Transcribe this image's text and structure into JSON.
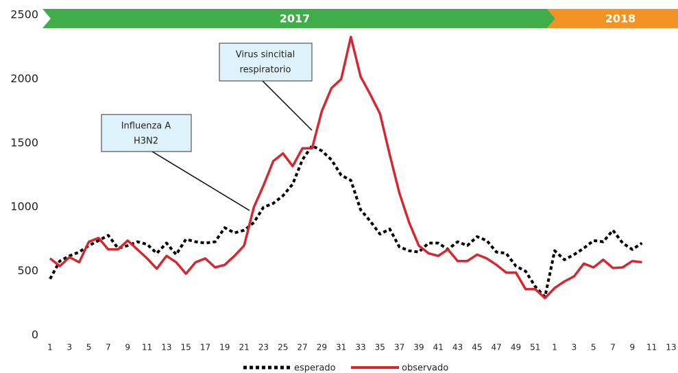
{
  "chart_data": {
    "type": "line",
    "banner": [
      "2017",
      "2018"
    ],
    "annotations": [
      [
        "Influenza A",
        "H3N2"
      ],
      [
        "Virus sincitial",
        "respiratorio"
      ]
    ],
    "categories": [
      "1",
      null,
      "3",
      null,
      "5",
      null,
      "7",
      null,
      "9",
      null,
      "11",
      null,
      "13",
      null,
      "15",
      null,
      "17",
      null,
      "19",
      null,
      "21",
      null,
      "23",
      null,
      "25",
      null,
      "27",
      null,
      "29",
      null,
      "31",
      null,
      "33",
      null,
      "35",
      null,
      "37",
      null,
      "39",
      null,
      "41",
      null,
      "43",
      null,
      "45",
      null,
      "47",
      null,
      "49",
      null,
      "51",
      null,
      "1",
      null,
      "3",
      null,
      "5",
      null,
      "7",
      null,
      "9",
      null,
      "11",
      null,
      "13"
    ],
    "series": [
      {
        "name": "esperado",
        "color": "#000000",
        "dashed": true,
        "values": [
          440,
          580,
          620,
          650,
          700,
          740,
          780,
          680,
          700,
          730,
          710,
          640,
          720,
          630,
          750,
          730,
          720,
          730,
          840,
          800,
          820,
          880,
          1000,
          1030,
          1090,
          1180,
          1370,
          1480,
          1440,
          1370,
          1250,
          1210,
          980,
          890,
          790,
          830,
          690,
          660,
          650,
          720,
          720,
          670,
          730,
          700,
          770,
          740,
          650,
          640,
          540,
          500,
          380,
          300,
          660,
          590,
          630,
          680,
          740,
          730,
          820,
          720,
          670,
          720,
          null,
          null,
          null
        ]
      },
      {
        "name": "observado",
        "color": "#d7262e",
        "dashed": false,
        "values": [
          600,
          540,
          610,
          570,
          730,
          760,
          670,
          670,
          740,
          670,
          600,
          520,
          620,
          570,
          480,
          570,
          600,
          530,
          550,
          620,
          700,
          1000,
          1170,
          1360,
          1420,
          1320,
          1460,
          1460,
          1750,
          1930,
          2000,
          2330,
          2020,
          1880,
          1730,
          1410,
          1110,
          880,
          700,
          640,
          620,
          670,
          580,
          580,
          630,
          600,
          550,
          490,
          490,
          360,
          360,
          290,
          370,
          420,
          460,
          560,
          530,
          590,
          525,
          530,
          580,
          570,
          null,
          null,
          null
        ]
      }
    ],
    "ylim": [
      0,
      2500
    ],
    "yticks": [
      0,
      500,
      1000,
      1500,
      2000,
      2500
    ],
    "grid": false
  }
}
